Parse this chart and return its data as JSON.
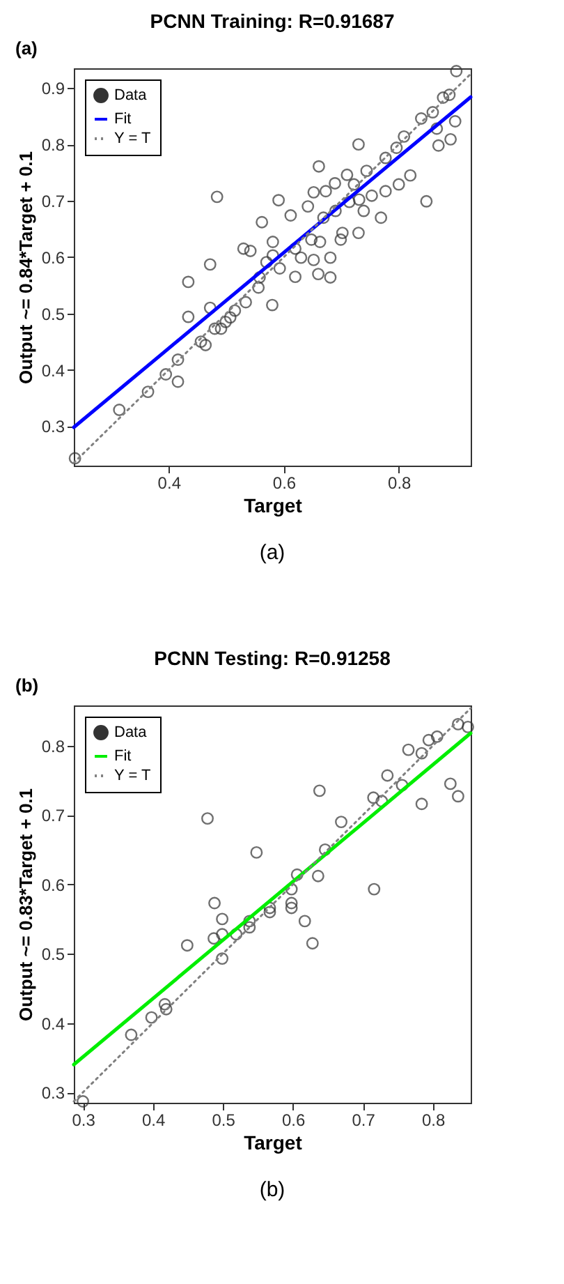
{
  "chart_data": [
    {
      "type": "scatter",
      "title": "PCNN Training: R=0.91687",
      "xlabel": "Target",
      "ylabel": "Output ~= 0.84*Target + 0.1",
      "annotations": [
        "(a)",
        "(a)"
      ],
      "xlim": [
        0.235,
        0.925
      ],
      "ylim": [
        0.23,
        0.935
      ],
      "xticks": [
        0.4,
        0.6,
        0.8
      ],
      "yticks": [
        0.3,
        0.4,
        0.5,
        0.6,
        0.7,
        0.8,
        0.9
      ],
      "legend": "top left",
      "grid": false,
      "series": [
        {
          "name": "Data",
          "type": "scatter",
          "marker": "circle",
          "color": "#333333",
          "x": [
            0.237,
            0.314,
            0.364,
            0.395,
            0.416,
            0.416,
            0.434,
            0.434,
            0.456,
            0.464,
            0.472,
            0.472,
            0.484,
            0.48,
            0.491,
            0.499,
            0.507,
            0.515,
            0.534,
            0.53,
            0.542,
            0.558,
            0.556,
            0.562,
            0.57,
            0.58,
            0.581,
            0.581,
            0.591,
            0.593,
            0.612,
            0.62,
            0.62,
            0.63,
            0.642,
            0.648,
            0.652,
            0.66,
            0.661,
            0.652,
            0.663,
            0.669,
            0.673,
            0.681,
            0.681,
            0.689,
            0.69,
            0.699,
            0.702,
            0.71,
            0.714,
            0.722,
            0.73,
            0.73,
            0.731,
            0.739,
            0.744,
            0.753,
            0.769,
            0.777,
            0.777,
            0.796,
            0.8,
            0.809,
            0.82,
            0.839,
            0.848,
            0.859,
            0.866,
            0.869,
            0.877,
            0.888,
            0.89,
            0.898,
            0.9
          ],
          "values": [
            0.243,
            0.329,
            0.361,
            0.392,
            0.379,
            0.418,
            0.494,
            0.556,
            0.45,
            0.444,
            0.587,
            0.51,
            0.707,
            0.473,
            0.473,
            0.485,
            0.493,
            0.505,
            0.52,
            0.615,
            0.611,
            0.564,
            0.546,
            0.662,
            0.591,
            0.515,
            0.627,
            0.603,
            0.701,
            0.58,
            0.674,
            0.565,
            0.615,
            0.599,
            0.69,
            0.631,
            0.595,
            0.57,
            0.761,
            0.715,
            0.627,
            0.67,
            0.717,
            0.599,
            0.564,
            0.731,
            0.682,
            0.631,
            0.643,
            0.746,
            0.698,
            0.729,
            0.8,
            0.643,
            0.702,
            0.682,
            0.753,
            0.709,
            0.67,
            0.717,
            0.776,
            0.794,
            0.729,
            0.814,
            0.745,
            0.846,
            0.699,
            0.857,
            0.828,
            0.798,
            0.883,
            0.888,
            0.809,
            0.841,
            0.93
          ]
        },
        {
          "name": "Fit",
          "type": "line",
          "line_style": "solid",
          "color": "#0000ff",
          "x": [
            0.235,
            0.925
          ],
          "values": [
            0.298,
            0.884
          ]
        },
        {
          "name": "Y = T",
          "type": "line",
          "line_style": "dotted",
          "color": "#808080",
          "x": [
            0.235,
            0.925
          ],
          "values": [
            0.235,
            0.925
          ]
        }
      ]
    },
    {
      "type": "scatter",
      "title": "PCNN Testing: R=0.91258",
      "xlabel": "Target",
      "ylabel": "Output ~= 0.83*Target + 0.1",
      "annotations": [
        "(b)",
        "(b)"
      ],
      "xlim": [
        0.287,
        0.854
      ],
      "ylim": [
        0.285,
        0.858
      ],
      "xticks": [
        0.3,
        0.4,
        0.5,
        0.6,
        0.7,
        0.8
      ],
      "yticks": [
        0.3,
        0.4,
        0.5,
        0.6,
        0.7,
        0.8
      ],
      "legend": "top left",
      "grid": false,
      "series": [
        {
          "name": "Data",
          "type": "scatter",
          "marker": "circle",
          "color": "#333333",
          "x": [
            0.3,
            0.369,
            0.398,
            0.417,
            0.419,
            0.449,
            0.478,
            0.488,
            0.487,
            0.499,
            0.499,
            0.499,
            0.519,
            0.538,
            0.538,
            0.548,
            0.567,
            0.567,
            0.598,
            0.598,
            0.598,
            0.606,
            0.617,
            0.628,
            0.636,
            0.638,
            0.646,
            0.669,
            0.715,
            0.716,
            0.727,
            0.735,
            0.756,
            0.765,
            0.784,
            0.784,
            0.794,
            0.806,
            0.825,
            0.836,
            0.836,
            0.85
          ],
          "values": [
            0.287,
            0.383,
            0.408,
            0.427,
            0.42,
            0.512,
            0.695,
            0.573,
            0.522,
            0.55,
            0.493,
            0.528,
            0.528,
            0.547,
            0.538,
            0.646,
            0.566,
            0.56,
            0.593,
            0.573,
            0.566,
            0.614,
            0.547,
            0.515,
            0.612,
            0.735,
            0.65,
            0.69,
            0.725,
            0.593,
            0.72,
            0.757,
            0.743,
            0.794,
            0.716,
            0.789,
            0.808,
            0.813,
            0.745,
            0.727,
            0.831,
            0.827
          ]
        },
        {
          "name": "Fit",
          "type": "line",
          "line_style": "solid",
          "color": "#00ee00",
          "x": [
            0.287,
            0.854
          ],
          "values": [
            0.34,
            0.818
          ]
        },
        {
          "name": "Y = T",
          "type": "line",
          "line_style": "dotted",
          "color": "#808080",
          "x": [
            0.287,
            0.854
          ],
          "values": [
            0.287,
            0.854
          ]
        }
      ]
    }
  ]
}
